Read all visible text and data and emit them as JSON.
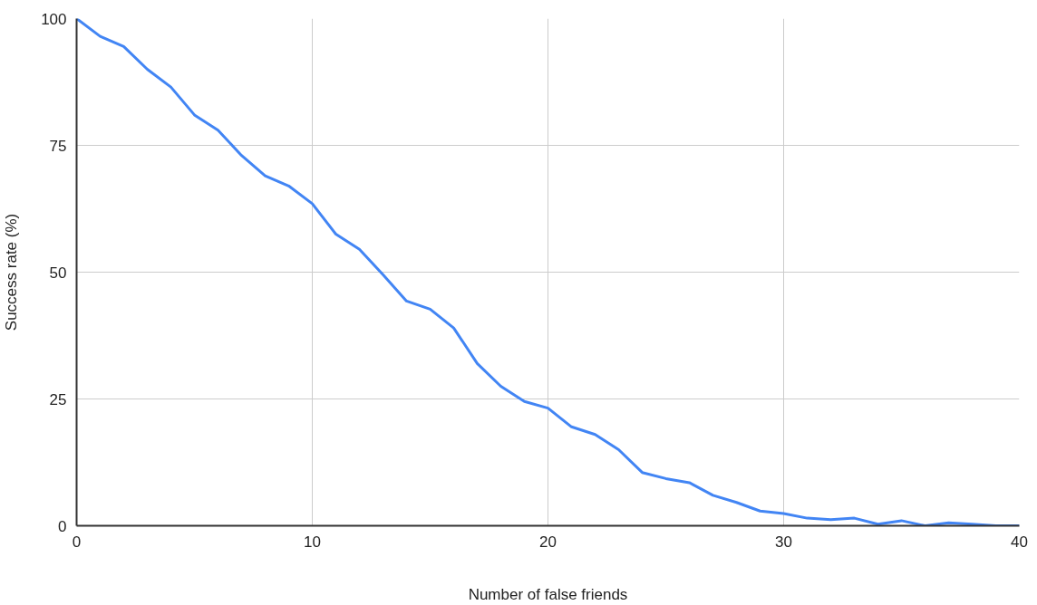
{
  "chart_data": {
    "type": "line",
    "xlabel": "Number of false friends",
    "ylabel": "Success rate (%)",
    "x": [
      0,
      1,
      2,
      3,
      4,
      5,
      6,
      7,
      8,
      9,
      10,
      11,
      12,
      13,
      14,
      15,
      16,
      17,
      18,
      19,
      20,
      21,
      22,
      23,
      24,
      25,
      26,
      27,
      28,
      29,
      30,
      31,
      32,
      33,
      34,
      35,
      36,
      37,
      38,
      39,
      40
    ],
    "series": [
      {
        "color": "#4285f4",
        "values": [
          100,
          96.5,
          94.5,
          90,
          86.5,
          81,
          78,
          73,
          69,
          67,
          63.5,
          57.5,
          54.5,
          49.5,
          44.3,
          42.7,
          39,
          32,
          27.5,
          24.5,
          23.2,
          19.5,
          18,
          15,
          10.5,
          9.3,
          8.5,
          6,
          4.6,
          2.9,
          2.4,
          1.5,
          1.2,
          1.5,
          0.3,
          1,
          0,
          0.6,
          0.3,
          0,
          0
        ]
      }
    ],
    "xlim": [
      0,
      40
    ],
    "xticks": [
      0,
      10,
      20,
      30,
      40
    ],
    "ylim": [
      0,
      100
    ],
    "yticks": [
      0,
      25,
      50,
      75,
      100
    ],
    "grid": true,
    "marker": "none",
    "line_style": "solid"
  }
}
